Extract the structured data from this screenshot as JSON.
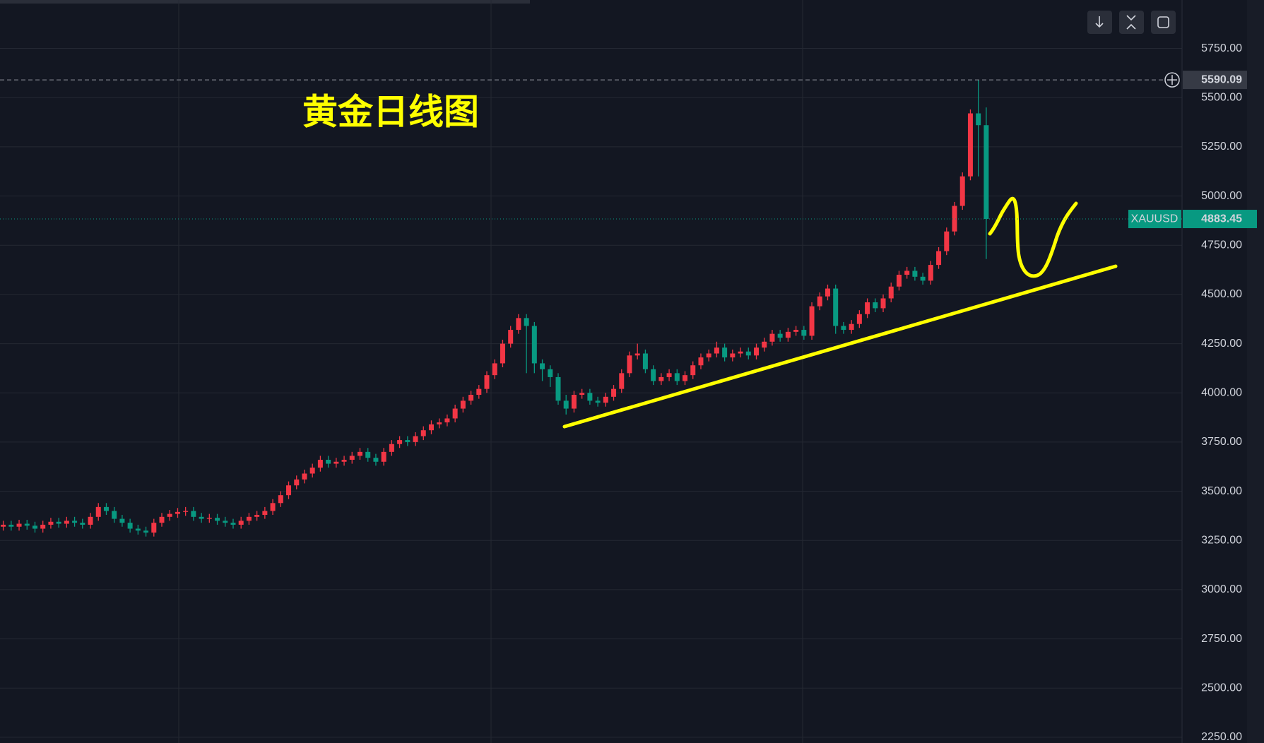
{
  "chart_data": {
    "type": "candlestick",
    "title": "黄金日线图",
    "symbol": "XAUUSD",
    "last_price": 4883.45,
    "crosshair_price": 5590.09,
    "up_color": "#f23645",
    "down_color": "#089981",
    "grid": true,
    "ylim": [
      2221,
      5996
    ],
    "yticks": [
      {
        "value": 2250,
        "label": "2250.00"
      },
      {
        "value": 2500,
        "label": "2500.00"
      },
      {
        "value": 2750,
        "label": "2750.00"
      },
      {
        "value": 3000,
        "label": "3000.00"
      },
      {
        "value": 3250,
        "label": "3250.00"
      },
      {
        "value": 3500,
        "label": "3500.00"
      },
      {
        "value": 3750,
        "label": "3750.00"
      },
      {
        "value": 4000,
        "label": "4000.00"
      },
      {
        "value": 4250,
        "label": "4250.00"
      },
      {
        "value": 4500,
        "label": "4500.00"
      },
      {
        "value": 4750,
        "label": "4750.00"
      },
      {
        "value": 5000,
        "label": "5000.00"
      },
      {
        "value": 5250,
        "label": "5250.00"
      },
      {
        "value": 5500,
        "label": "5500.00"
      },
      {
        "value": 5750,
        "label": "5750.00"
      }
    ],
    "open": [
      3320,
      3330,
      3320,
      3335,
      3325,
      3310,
      3330,
      3345,
      3335,
      3350,
      3340,
      3330,
      3370,
      3420,
      3400,
      3360,
      3340,
      3310,
      3300,
      3290,
      3340,
      3370,
      3385,
      3395,
      3400,
      3370,
      3360,
      3365,
      3350,
      3340,
      3330,
      3350,
      3370,
      3380,
      3400,
      3440,
      3480,
      3530,
      3560,
      3590,
      3620,
      3660,
      3640,
      3650,
      3660,
      3680,
      3700,
      3670,
      3650,
      3700,
      3740,
      3760,
      3750,
      3780,
      3810,
      3840,
      3850,
      3870,
      3920,
      3960,
      3990,
      4020,
      4090,
      4150,
      4250,
      4320,
      4380,
      4340,
      4150,
      4120,
      4080,
      3960,
      3920,
      3990,
      4000,
      3960,
      3950,
      3980,
      4020,
      4100,
      4190,
      4200,
      4120,
      4060,
      4080,
      4100,
      4060,
      4090,
      4140,
      4180,
      4200,
      4230,
      4180,
      4200,
      4210,
      4190,
      4230,
      4260,
      4300,
      4280,
      4310,
      4320,
      4290,
      4440,
      4490,
      4530,
      4340,
      4320,
      4350,
      4400,
      4460,
      4430,
      4480,
      4540,
      4600,
      4620,
      4590,
      4570,
      4650,
      4720,
      4820,
      4950,
      5100,
      5420,
      5360
    ],
    "high": [
      3350,
      3350,
      3355,
      3355,
      3345,
      3350,
      3365,
      3365,
      3370,
      3370,
      3360,
      3390,
      3440,
      3440,
      3420,
      3380,
      3360,
      3330,
      3320,
      3360,
      3390,
      3405,
      3415,
      3420,
      3420,
      3390,
      3385,
      3385,
      3370,
      3360,
      3370,
      3390,
      3400,
      3420,
      3460,
      3500,
      3550,
      3580,
      3610,
      3640,
      3680,
      3680,
      3670,
      3680,
      3700,
      3720,
      3720,
      3690,
      3720,
      3760,
      3780,
      3780,
      3800,
      3830,
      3860,
      3870,
      3890,
      3940,
      3980,
      4010,
      4040,
      4110,
      4170,
      4270,
      4340,
      4400,
      4400,
      4360,
      4170,
      4140,
      4100,
      3990,
      4010,
      4020,
      4020,
      3980,
      4000,
      4040,
      4120,
      4210,
      4250,
      4220,
      4140,
      4100,
      4120,
      4120,
      4110,
      4160,
      4200,
      4220,
      4260,
      4250,
      4220,
      4230,
      4230,
      4250,
      4280,
      4320,
      4320,
      4330,
      4340,
      4340,
      4460,
      4510,
      4550,
      4550,
      4360,
      4370,
      4420,
      4480,
      4480,
      4500,
      4560,
      4620,
      4640,
      4640,
      4610,
      4670,
      4740,
      4840,
      4970,
      5120,
      5440,
      5590,
      5450
    ],
    "low": [
      3300,
      3300,
      3300,
      3305,
      3290,
      3290,
      3310,
      3315,
      3315,
      3320,
      3310,
      3310,
      3350,
      3380,
      3340,
      3320,
      3290,
      3280,
      3270,
      3270,
      3320,
      3350,
      3365,
      3375,
      3350,
      3340,
      3340,
      3330,
      3320,
      3310,
      3310,
      3330,
      3350,
      3360,
      3380,
      3420,
      3460,
      3510,
      3540,
      3570,
      3600,
      3620,
      3620,
      3630,
      3640,
      3660,
      3650,
      3630,
      3630,
      3680,
      3720,
      3730,
      3730,
      3760,
      3790,
      3820,
      3830,
      3850,
      3900,
      3940,
      3970,
      4000,
      4070,
      4130,
      4230,
      4300,
      4100,
      4100,
      4060,
      4030,
      3940,
      3890,
      3900,
      3970,
      3940,
      3930,
      3930,
      3960,
      4000,
      4080,
      4170,
      4100,
      4040,
      4040,
      4060,
      4040,
      4040,
      4070,
      4120,
      4160,
      4180,
      4160,
      4160,
      4180,
      4170,
      4170,
      4210,
      4240,
      4260,
      4260,
      4290,
      4270,
      4270,
      4420,
      4470,
      4300,
      4300,
      4300,
      4330,
      4380,
      4410,
      4410,
      4460,
      4520,
      4580,
      4570,
      4550,
      4550,
      4630,
      4700,
      4800,
      4930,
      5080,
      5100,
      4680
    ],
    "close": [
      3330,
      3320,
      3335,
      3325,
      3310,
      3330,
      3345,
      3335,
      3350,
      3340,
      3330,
      3370,
      3420,
      3400,
      3360,
      3340,
      3310,
      3300,
      3290,
      3340,
      3370,
      3385,
      3395,
      3400,
      3370,
      3360,
      3365,
      3350,
      3340,
      3330,
      3350,
      3370,
      3380,
      3400,
      3440,
      3480,
      3530,
      3560,
      3590,
      3620,
      3660,
      3640,
      3650,
      3660,
      3680,
      3700,
      3670,
      3650,
      3700,
      3740,
      3760,
      3750,
      3780,
      3810,
      3840,
      3850,
      3870,
      3920,
      3960,
      3990,
      4020,
      4090,
      4150,
      4250,
      4320,
      4380,
      4340,
      4150,
      4120,
      4080,
      3960,
      3920,
      3990,
      4000,
      3960,
      3950,
      3980,
      4020,
      4100,
      4190,
      4200,
      4120,
      4060,
      4080,
      4100,
      4060,
      4090,
      4140,
      4180,
      4200,
      4230,
      4180,
      4200,
      4210,
      4190,
      4230,
      4260,
      4300,
      4280,
      4310,
      4320,
      4290,
      4440,
      4490,
      4530,
      4340,
      4320,
      4350,
      4400,
      4460,
      4430,
      4480,
      4540,
      4600,
      4620,
      4590,
      4570,
      4650,
      4720,
      4820,
      4950,
      5100,
      5420,
      5360,
      4883.45
    ]
  }
}
